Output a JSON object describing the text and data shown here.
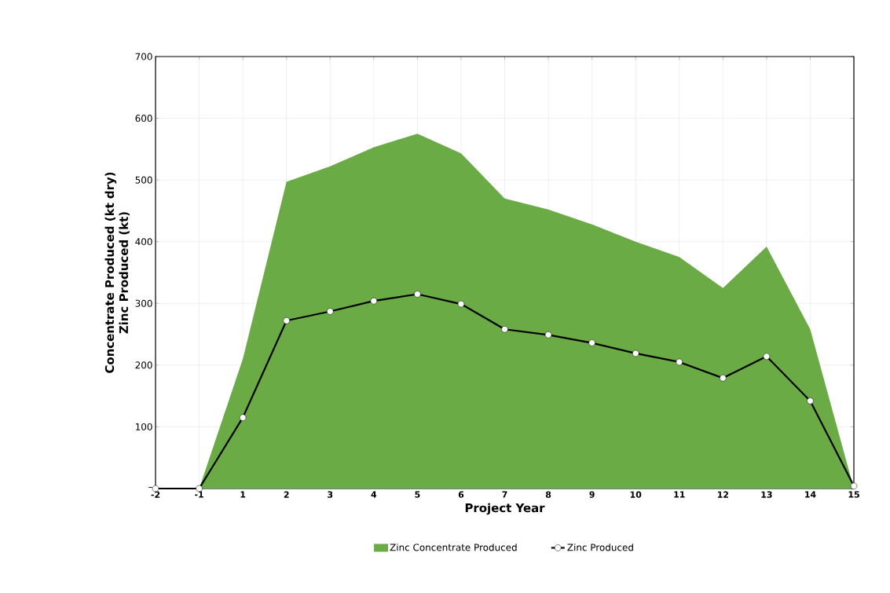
{
  "chart_data": {
    "type": "line",
    "xlabel": "Project Year",
    "ylabel": [
      "Concentrate Produced (kt dry)",
      "Zinc Produced (kt)"
    ],
    "categories": [
      "-2",
      "-1",
      "1",
      "2",
      "3",
      "4",
      "5",
      "6",
      "7",
      "8",
      "9",
      "10",
      "11",
      "12",
      "13",
      "14",
      "15"
    ],
    "series": [
      {
        "name": "Zinc Concentrate Produced",
        "type": "area",
        "color": "#6aab45",
        "values": [
          0,
          0,
          210,
          497,
          522,
          553,
          575,
          543,
          470,
          452,
          428,
          400,
          375,
          325,
          392,
          258,
          0
        ]
      },
      {
        "name": "Zinc Produced",
        "color": "#000000",
        "marker": "circle",
        "values": [
          0,
          0,
          115,
          272,
          287,
          304,
          315,
          299,
          258,
          249,
          236,
          219,
          205,
          179,
          214,
          142,
          4
        ]
      }
    ],
    "ylim": [
      0,
      700
    ],
    "yticks": [
      {
        "value": 0,
        "label": "–"
      },
      100,
      200,
      300,
      400,
      500,
      600,
      700
    ],
    "grid": true,
    "legend": "bottom"
  }
}
